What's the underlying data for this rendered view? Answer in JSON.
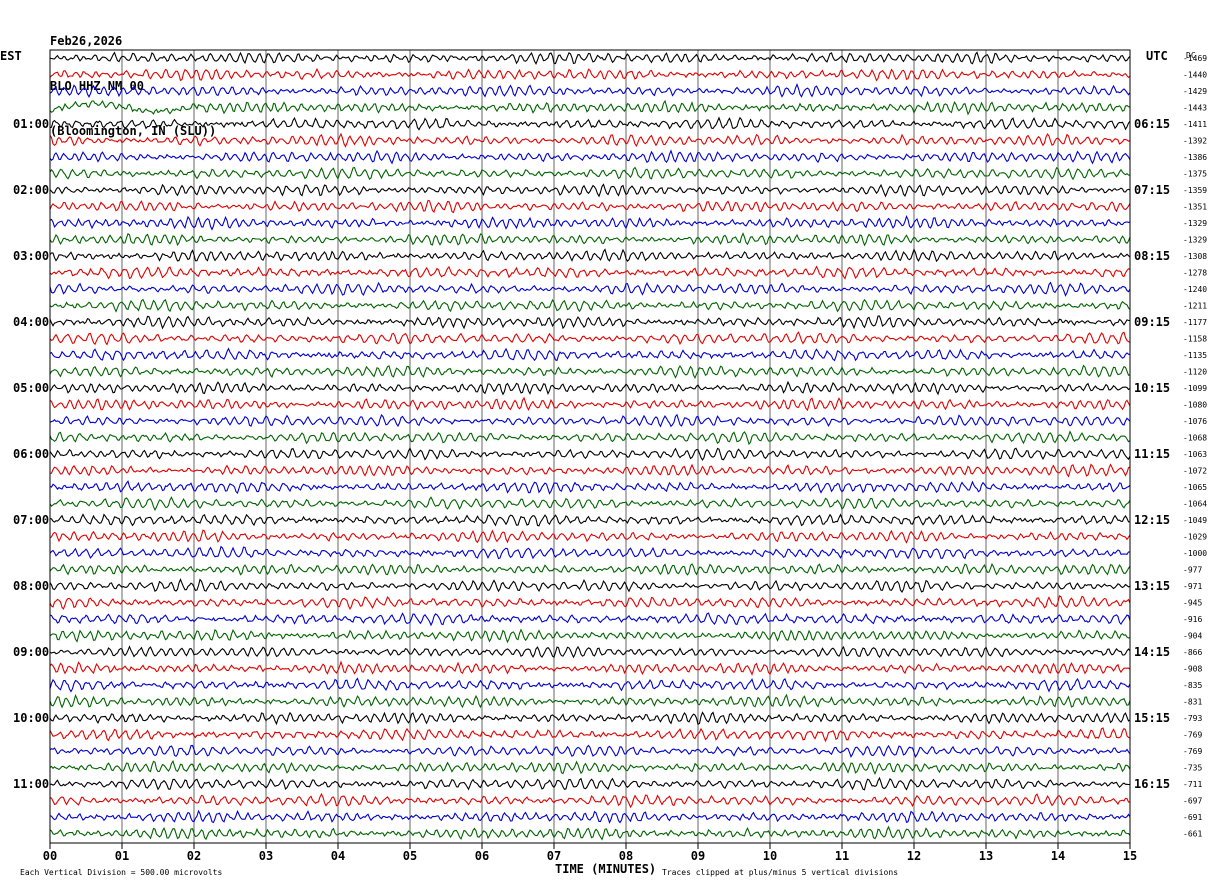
{
  "header": {
    "date": "Feb26,2026",
    "station": "BLO HHZ NM 00",
    "location": "(Bloomington, IN (SLU))"
  },
  "chart_data": {
    "type": "line",
    "title": "BLO HHZ NM 00",
    "left_axis_label": "EST",
    "right_axis_label": "UTC",
    "dc_label": "DC",
    "xlabel": "TIME (MINUTES)",
    "x_ticks": [
      "00",
      "01",
      "02",
      "03",
      "04",
      "05",
      "06",
      "07",
      "08",
      "09",
      "10",
      "11",
      "12",
      "13",
      "14",
      "15"
    ],
    "xlim": [
      0,
      15
    ],
    "est_hour_labels": [
      "01:00",
      "02:00",
      "03:00",
      "04:00",
      "05:00",
      "06:00",
      "07:00",
      "08:00",
      "09:00",
      "10:00",
      "11:00"
    ],
    "utc_hour_labels": [
      "06:15",
      "07:15",
      "08:15",
      "09:15",
      "10:15",
      "11:15",
      "12:15",
      "13:15",
      "14:15",
      "15:15",
      "16:15"
    ],
    "trace_colors": [
      "#000000",
      "#e00000",
      "#0000d0",
      "#006400"
    ],
    "num_traces": 48,
    "trace_dc_offsets": [
      -1469,
      -1440,
      -1429,
      -1443,
      -1411,
      -1392,
      -1386,
      -1375,
      -1359,
      -1351,
      -1329,
      -1329,
      -1308,
      -1278,
      -1240,
      -1211,
      -1177,
      -1158,
      -1135,
      -1120,
      -1099,
      -1080,
      -1076,
      -1068,
      -1063,
      -1072,
      -1065,
      -1064,
      -1049,
      -1029,
      -1000,
      -977,
      -971,
      -945,
      -916,
      -904,
      -866,
      -908,
      -835,
      -831,
      -793,
      -769,
      -769,
      -735,
      -711,
      -697,
      -691,
      -661
    ],
    "footer_left": "Each Vertical Division =  500.00 microvolts",
    "footer_right": "Traces clipped at plus/minus 5 vertical divisions",
    "grid": true
  }
}
